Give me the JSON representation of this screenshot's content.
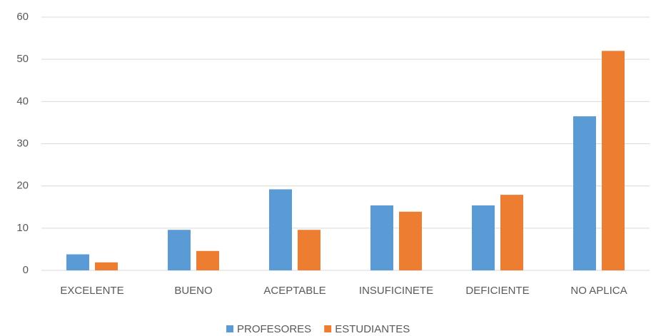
{
  "chart_data": {
    "type": "bar",
    "categories": [
      "EXCELENTE",
      "BUENO",
      "ACEPTABLE",
      "INSUFICINETE",
      "DEFICIENTE",
      "NO APLICA"
    ],
    "series": [
      {
        "name": "PROFESORES",
        "color": "#5b9bd5",
        "values": [
          3.8,
          9.6,
          19.2,
          15.4,
          15.4,
          36.5
        ]
      },
      {
        "name": "ESTUDIANTES",
        "color": "#ed7d31",
        "values": [
          1.9,
          4.6,
          9.6,
          13.9,
          17.9,
          52
        ]
      }
    ],
    "ylim": [
      0,
      60
    ],
    "yticks": [
      0,
      10,
      20,
      30,
      40,
      50,
      60
    ],
    "grid": true,
    "legend": "bottom"
  }
}
